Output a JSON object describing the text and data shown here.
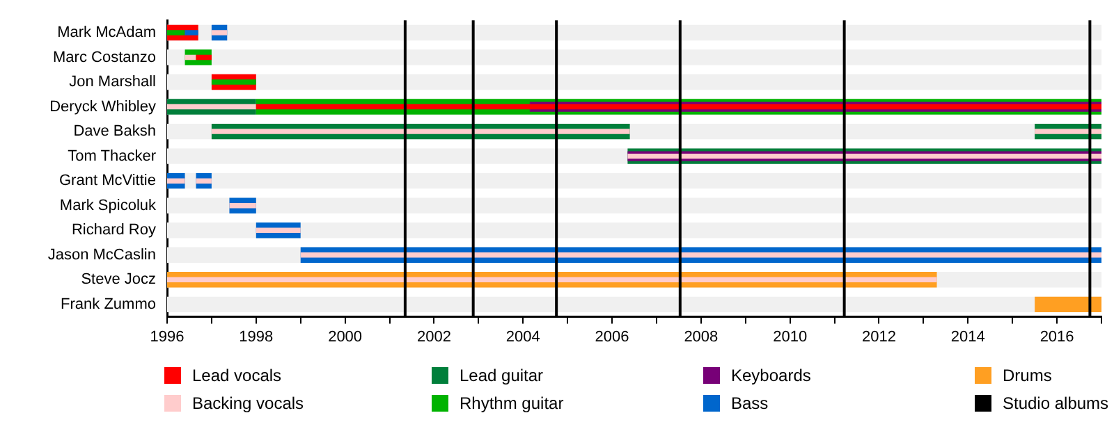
{
  "chart_data": {
    "type": "bar",
    "orientation": "horizontal",
    "categories": [
      "Mark McAdam",
      "Marc Costanzo",
      "Jon Marshall",
      "Deryck Whibley",
      "Dave Baksh",
      "Tom Thacker",
      "Grant McVittie",
      "Mark Spicoluk",
      "Richard Roy",
      "Jason McCaslin",
      "Steve Jocz",
      "Frank Zummo"
    ],
    "xlim": [
      1996,
      2017
    ],
    "xticks": [
      1996,
      {
        "value": 1997,
        "label": null
      },
      1998,
      {
        "value": 1999,
        "label": null
      },
      2000,
      {
        "value": 2001,
        "label": null
      },
      2002,
      {
        "value": 2003,
        "label": null
      },
      2004,
      {
        "value": 2005,
        "label": null
      },
      2006,
      {
        "value": 2007,
        "label": null
      },
      2008,
      {
        "value": 2009,
        "label": null
      },
      2010,
      {
        "value": 2011,
        "label": null
      },
      2012,
      {
        "value": 2013,
        "label": null
      },
      2014,
      {
        "value": 2015,
        "label": null
      },
      2016,
      {
        "value": 2017,
        "label": null
      }
    ],
    "series": [
      {
        "name": "Lead vocals",
        "color": "#ff0000",
        "base": [
          1996,
          null,
          1997,
          null,
          null,
          null,
          null,
          null,
          null,
          null,
          null,
          null
        ],
        "values": [
          0.7,
          null,
          1.0,
          null,
          null,
          null,
          null,
          null,
          null,
          null,
          null,
          null
        ]
      },
      {
        "name": "Backing vocals",
        "color": "#ffcccc",
        "base": [
          1997,
          1996.4,
          null,
          1996,
          1997,
          2006.35,
          1996,
          1997.4,
          1998,
          1999,
          1996,
          null
        ],
        "values": [
          0.35,
          0.25,
          null,
          2,
          9.4,
          10.65,
          0.4,
          0.6,
          1,
          18,
          17.3,
          null
        ]
      },
      {
        "name": "Lead guitar",
        "color": "#007f3b",
        "base": [
          null,
          null,
          null,
          1996,
          1997,
          2006.35,
          null,
          null,
          null,
          null,
          null,
          null
        ],
        "values": [
          null,
          null,
          null,
          2,
          9.4,
          10.65,
          null,
          null,
          null,
          null,
          null,
          null
        ]
      },
      {
        "name": "Rhythm guitar",
        "color": "#00b300",
        "base": [
          null,
          1996.4,
          null,
          1998,
          null,
          null,
          null,
          null,
          null,
          null,
          null,
          null
        ],
        "values": [
          null,
          0.6,
          null,
          19,
          null,
          null,
          null,
          null,
          null,
          null,
          null,
          null
        ]
      },
      {
        "name": "Keyboards",
        "color": "#770077",
        "base": [
          null,
          null,
          null,
          2004.15,
          null,
          2006.35,
          null,
          null,
          null,
          null,
          null,
          null
        ],
        "values": [
          null,
          null,
          null,
          12.85,
          null,
          10.65,
          null,
          null,
          null,
          null,
          null,
          null
        ]
      },
      {
        "name": "Bass",
        "color": "#0066cc",
        "base": [
          1997,
          null,
          null,
          null,
          null,
          null,
          1996,
          1997.4,
          1998,
          1999,
          null,
          null
        ],
        "values": [
          0.35,
          null,
          null,
          null,
          null,
          null,
          0.4,
          0.6,
          1,
          18,
          null,
          null
        ]
      },
      {
        "name": "Drums",
        "color": "#ff9f22",
        "base": [
          null,
          null,
          null,
          null,
          null,
          null,
          null,
          null,
          null,
          null,
          1996,
          2015.5
        ],
        "values": [
          null,
          null,
          null,
          null,
          null,
          null,
          null,
          null,
          null,
          null,
          17.3,
          1.5
        ]
      },
      {
        "color": "#007f3b",
        "base": [
          null,
          null,
          null,
          null,
          2015.5,
          null,
          null,
          null,
          null,
          null,
          null,
          null
        ],
        "values": [
          null,
          null,
          null,
          null,
          1.5,
          null,
          null,
          null,
          null,
          null,
          null,
          null
        ]
      },
      {
        "color": "#0066cc",
        "base": [
          null,
          null,
          null,
          null,
          null,
          null,
          1996.65,
          null,
          null,
          null,
          null,
          null
        ],
        "values": [
          null,
          null,
          null,
          null,
          null,
          null,
          0.35,
          null,
          null,
          null,
          null,
          null
        ]
      },
      {
        "color": "#ffcccc",
        "base": [
          null,
          null,
          null,
          null,
          2015.5,
          null,
          1996.65,
          null,
          null,
          null,
          null,
          null
        ],
        "values": [
          null,
          null,
          null,
          null,
          1.5,
          null,
          0.35,
          null,
          null,
          null,
          null,
          null
        ]
      },
      {
        "color": "#ff0000",
        "base": [
          null,
          1996.65,
          null,
          1998,
          null,
          null,
          null,
          null,
          null,
          null,
          null,
          null
        ],
        "values": [
          null,
          0.35,
          null,
          19,
          null,
          null,
          null,
          null,
          null,
          null,
          null,
          null
        ]
      },
      {
        "color": "#00b300",
        "base": [
          1996,
          null,
          1997,
          null,
          null,
          null,
          null,
          null,
          null,
          null,
          null,
          null
        ],
        "values": [
          0.4,
          null,
          1.0,
          null,
          null,
          null,
          null,
          null,
          null,
          null,
          null,
          null
        ]
      },
      {
        "color": "#0066cc",
        "base": [
          1996.4,
          null,
          null,
          null,
          null,
          null,
          null,
          null,
          null,
          null,
          null,
          null
        ],
        "values": [
          0.3,
          null,
          null,
          null,
          null,
          null,
          null,
          null,
          null,
          null,
          null,
          null
        ]
      }
    ],
    "ref_lines": [
      {
        "axis": "x",
        "value": 2001.35,
        "label": "Studio albums",
        "color": "#000000"
      },
      {
        "axis": "x",
        "value": 2002.88,
        "color": "#000000"
      },
      {
        "axis": "x",
        "value": 2004.75,
        "color": "#000000"
      },
      {
        "axis": "x",
        "value": 2007.53,
        "color": "#000000"
      },
      {
        "axis": "x",
        "value": 2011.22,
        "color": "#000000"
      },
      {
        "axis": "x",
        "value": 2016.74,
        "color": "#000000"
      }
    ],
    "legend": "bottom",
    "grid": false
  }
}
